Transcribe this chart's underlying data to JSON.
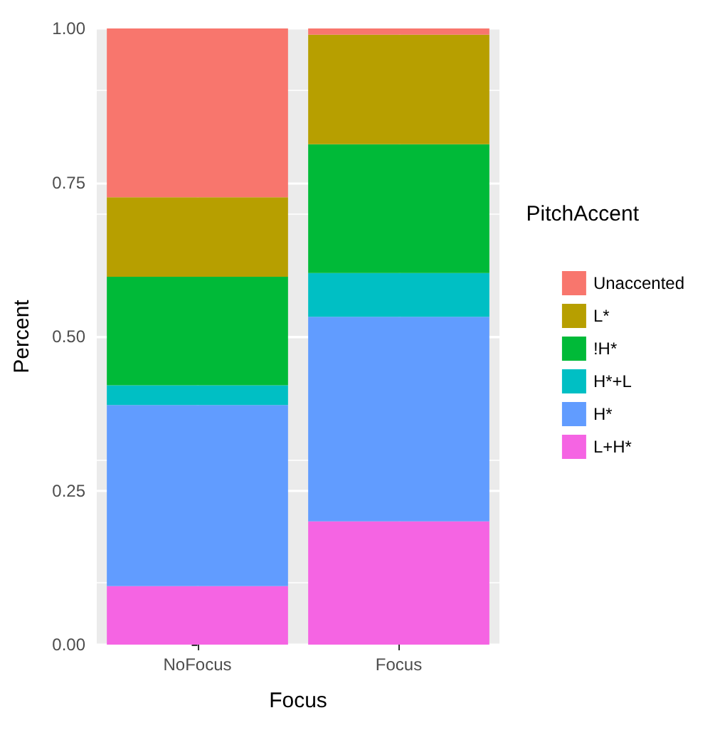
{
  "chart_data": {
    "type": "bar",
    "stacked": true,
    "xlabel": "Focus",
    "ylabel": "Percent",
    "legend_title": "PitchAccent",
    "legend": "right",
    "grid": true,
    "categories": [
      "NoFocus",
      "Focus"
    ],
    "ylim": [
      0,
      1
    ],
    "yticks": [
      {
        "value": 0,
        "label": "0.00"
      },
      {
        "value": 0.25,
        "label": "0.25"
      },
      {
        "value": 0.5,
        "label": "0.50"
      },
      {
        "value": 0.75,
        "label": "0.75"
      },
      {
        "value": 1,
        "label": "1.00"
      }
    ],
    "series": [
      {
        "name": "L+H*",
        "color": "#f564e3",
        "values": [
          0.095,
          0.2
        ]
      },
      {
        "name": "H*",
        "color": "#619cff",
        "values": [
          0.294,
          0.332
        ]
      },
      {
        "name": "H*+L",
        "color": "#00bfc4",
        "values": [
          0.032,
          0.071
        ]
      },
      {
        "name": "!H*",
        "color": "#00ba38",
        "values": [
          0.176,
          0.209
        ]
      },
      {
        "name": "L*",
        "color": "#b79f00",
        "values": [
          0.129,
          0.178
        ]
      },
      {
        "name": "Unaccented",
        "color": "#f8766d",
        "values": [
          0.274,
          0.01
        ]
      }
    ]
  }
}
